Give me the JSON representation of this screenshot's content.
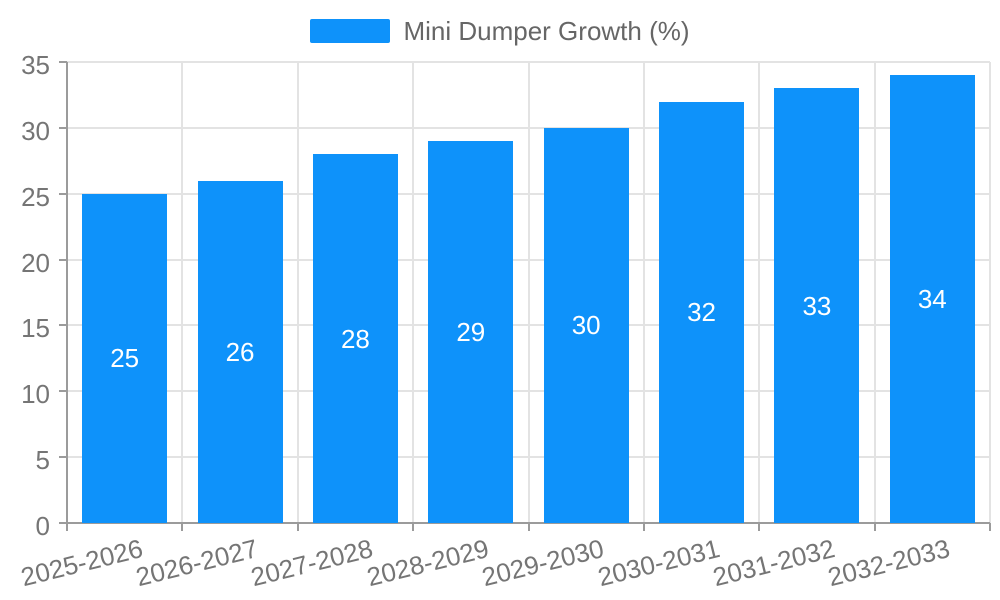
{
  "chart_data": {
    "type": "bar",
    "title": "Mini Dumper Growth (%)",
    "categories": [
      "2025-2026",
      "2026-2027",
      "2027-2028",
      "2028-2029",
      "2029-2030",
      "2030-2031",
      "2031-2032",
      "2032-2033"
    ],
    "values": [
      25,
      26,
      28,
      29,
      30,
      32,
      33,
      34
    ],
    "xlabel": "",
    "ylabel": "",
    "ylim": [
      0,
      35
    ],
    "yticks": [
      0,
      5,
      10,
      15,
      20,
      25,
      30,
      35
    ],
    "grid": true,
    "legend": {
      "label": "Mini Dumper Growth (%)",
      "position": "top-center"
    },
    "colors": {
      "bar": "#0E92FA",
      "bar_label": "#FFFFFF",
      "gridline": "#E3E3E3",
      "axis": "#9B9B9B",
      "tick_text": "#757575",
      "legend_text": "#666666",
      "background": "#FFFFFF"
    }
  }
}
